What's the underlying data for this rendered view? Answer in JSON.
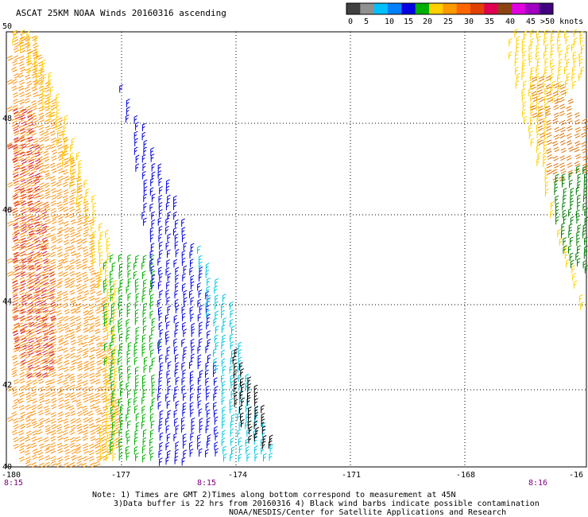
{
  "title": "ASCAT 25KM NOAA Winds 20160316 ascending",
  "legend": {
    "colors": [
      "#404040",
      "#909090",
      "#00c0ff",
      "#0080ff",
      "#0000e0",
      "#00b000",
      "#ffd000",
      "#ff9900",
      "#ff6600",
      "#e04000",
      "#e00050",
      "#8b4513",
      "#e000e0",
      "#a000c0",
      "#400080"
    ],
    "labels": [
      "0",
      "5",
      "10",
      "15",
      "20",
      "25",
      "30",
      "35",
      "40",
      "45"
    ],
    "unit_label": ">50 knots"
  },
  "map": {
    "lon_range": [
      -180,
      -165
    ],
    "lat_range": [
      40,
      50
    ],
    "x_tick_labels": [
      "-180",
      "-177",
      "-174",
      "-171",
      "-168",
      "-16"
    ],
    "y_tick_labels": [
      "50",
      "48",
      "46",
      "44",
      "42",
      "40"
    ],
    "time_labels": [
      "8:15",
      "8:15",
      "8:16"
    ],
    "swaths": [
      {
        "name": "west-orange",
        "color": "#ff8c00"
      },
      {
        "name": "west-yellow",
        "color": "#ffd000"
      },
      {
        "name": "west-red",
        "color": "#d01040"
      },
      {
        "name": "central-green",
        "color": "#00b000"
      },
      {
        "name": "central-blue",
        "color": "#0000e0"
      },
      {
        "name": "central-cyan",
        "color": "#00c8e0"
      },
      {
        "name": "central-black",
        "color": "#000000"
      },
      {
        "name": "east-yellow",
        "color": "#ffd000"
      },
      {
        "name": "east-orange",
        "color": "#e07000"
      },
      {
        "name": "east-green",
        "color": "#008000"
      }
    ]
  },
  "notes": {
    "line1": "Note: 1) Times are GMT 2)Times along bottom correspond to measurement at 45N",
    "line2": "3)Data buffer is 22 hrs from 20160316 4) Black wind barbs indicate possible contamination",
    "line3": "NOAA/NESDIS/Center for Satellite Applications and Research"
  }
}
